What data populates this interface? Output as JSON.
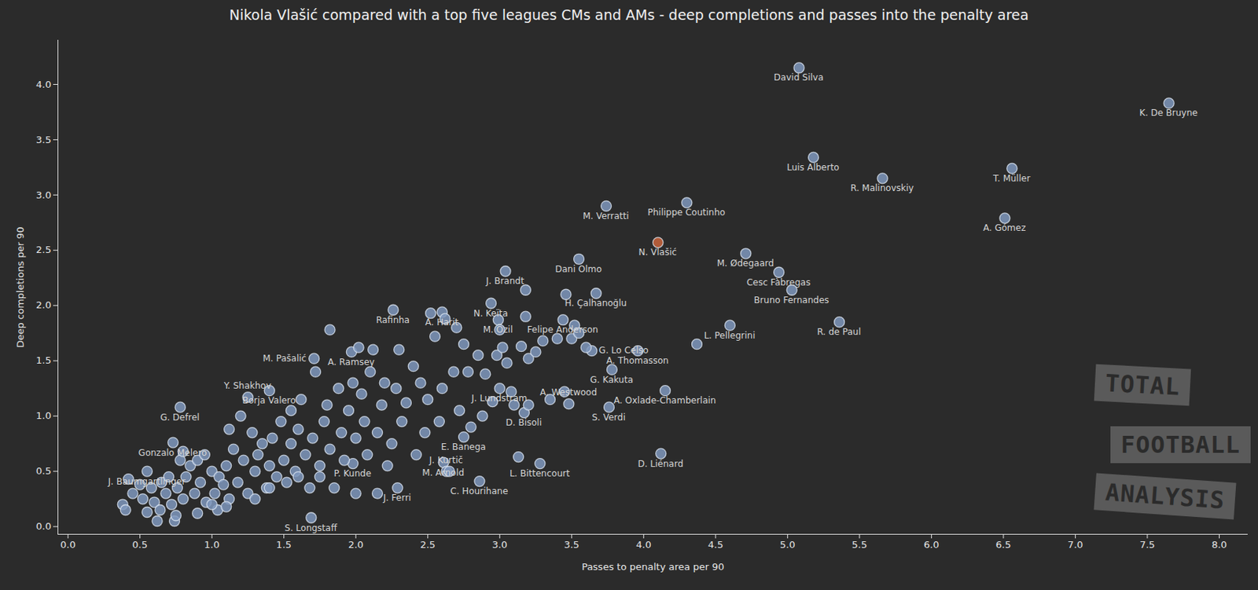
{
  "chart_data": {
    "type": "scatter",
    "title": "Nikola Vlašić compared with a top five leagues CMs and AMs - deep completions and passes into the penalty area",
    "x_label": "Passes to penalty area per 90",
    "y_label": "Deep completions per 90",
    "xlim": [
      -0.07,
      8.2
    ],
    "ylim": [
      -0.07,
      4.4
    ],
    "xticks": [
      {
        "value": 0,
        "label": "0.0"
      },
      0.5,
      {
        "value": 1,
        "label": "1.0"
      },
      1.5,
      {
        "value": 2,
        "label": "2.0"
      },
      2.5,
      {
        "value": 3,
        "label": "3.0"
      },
      3.5,
      {
        "value": 4,
        "label": "4.0"
      },
      4.5,
      {
        "value": 5,
        "label": "5.0"
      },
      5.5,
      {
        "value": 6,
        "label": "6.0"
      },
      6.5,
      {
        "value": 7,
        "label": "7.0"
      },
      7.5,
      {
        "value": 8,
        "label": "8.0"
      }
    ],
    "yticks": [
      {
        "value": 0,
        "label": "0.0"
      },
      0.5,
      {
        "value": 1,
        "label": "1.0"
      },
      1.5,
      {
        "value": 2,
        "label": "2.0"
      },
      2.5,
      {
        "value": 3,
        "label": "3.0"
      },
      3.5,
      {
        "value": 4,
        "label": "4.0"
      }
    ],
    "grid": false,
    "annotations": [
      "TOTAL",
      "FOOTBALL",
      "ANALYSIS"
    ],
    "x": [
      5.08,
      7.65,
      5.18,
      5.66,
      6.56,
      6.51,
      3.74,
      4.3,
      4.1,
      4.71,
      4.94,
      5.03,
      5.36,
      4.6,
      3.96,
      4.15,
      4.12,
      3.76,
      3.04,
      3.55,
      3.67,
      3.44,
      3.64,
      3.78,
      2.6,
      2.94,
      2.26,
      2.99,
      1.97,
      1.71,
      1.4,
      1.25,
      0.78,
      0.73,
      0.55,
      1.98,
      1.69,
      2.29,
      2.86,
      2.61,
      2.63,
      2.75,
      3.28,
      3.0,
      3.17,
      3.48,
      0.38,
      0.4,
      0.42,
      0.45,
      0.5,
      0.52,
      0.55,
      0.58,
      0.6,
      0.62,
      0.64,
      0.65,
      0.68,
      0.7,
      0.72,
      0.74,
      0.75,
      0.76,
      0.78,
      0.8,
      0.8,
      0.82,
      0.85,
      0.88,
      0.9,
      0.92,
      0.95,
      0.96,
      1.0,
      1.02,
      1.04,
      1.05,
      1.08,
      1.1,
      1.12,
      1.12,
      1.15,
      1.18,
      1.2,
      1.22,
      1.25,
      1.28,
      1.3,
      1.32,
      1.35,
      1.38,
      1.4,
      1.42,
      1.45,
      1.48,
      1.5,
      1.52,
      1.55,
      1.55,
      1.58,
      1.6,
      1.62,
      1.65,
      1.68,
      1.7,
      1.72,
      1.75,
      1.78,
      1.8,
      1.82,
      1.82,
      1.85,
      1.88,
      1.9,
      1.92,
      1.95,
      1.98,
      2.0,
      2.02,
      2.04,
      2.06,
      2.08,
      2.1,
      2.12,
      2.15,
      2.18,
      2.2,
      2.22,
      2.25,
      2.28,
      2.3,
      2.32,
      2.35,
      2.4,
      2.42,
      2.45,
      2.48,
      2.5,
      2.52,
      2.55,
      2.58,
      2.6,
      2.62,
      2.65,
      2.68,
      2.7,
      2.72,
      2.75,
      2.78,
      2.8,
      2.85,
      2.88,
      2.9,
      2.95,
      2.98,
      3.0,
      3.02,
      3.05,
      3.08,
      3.1,
      3.15,
      3.18,
      3.18,
      3.2,
      3.25,
      3.3,
      3.35,
      3.4,
      3.45,
      3.5,
      3.52,
      3.55,
      3.6,
      3.2,
      1.3,
      1.0,
      0.9,
      1.1,
      1.4,
      1.6,
      2.0,
      2.15,
      1.75,
      4.37,
      3.46,
      3.13
    ],
    "values": [
      4.15,
      3.83,
      3.34,
      3.15,
      3.24,
      2.79,
      2.9,
      2.93,
      2.57,
      2.47,
      2.3,
      2.14,
      1.85,
      1.82,
      1.59,
      1.23,
      0.66,
      1.08,
      2.31,
      2.42,
      2.11,
      1.87,
      1.59,
      1.42,
      1.94,
      2.02,
      1.96,
      1.87,
      1.58,
      1.52,
      1.23,
      1.17,
      1.08,
      0.76,
      0.5,
      0.57,
      0.08,
      0.35,
      0.41,
      0.58,
      0.5,
      0.81,
      0.57,
      1.25,
      1.03,
      1.11,
      0.2,
      0.15,
      0.43,
      0.3,
      0.38,
      0.25,
      0.13,
      0.35,
      0.22,
      0.05,
      0.15,
      0.4,
      0.3,
      0.45,
      0.2,
      0.05,
      0.1,
      0.35,
      0.6,
      0.68,
      0.25,
      0.45,
      0.55,
      0.3,
      0.6,
      0.4,
      0.65,
      0.22,
      0.5,
      0.3,
      0.15,
      0.45,
      0.38,
      0.55,
      0.25,
      0.88,
      0.7,
      0.4,
      1.0,
      0.6,
      0.3,
      0.85,
      0.5,
      0.65,
      0.75,
      0.35,
      0.55,
      0.8,
      0.45,
      0.95,
      0.6,
      0.4,
      0.75,
      1.05,
      0.5,
      0.88,
      1.15,
      0.65,
      0.35,
      0.8,
      1.4,
      0.55,
      0.95,
      1.1,
      1.78,
      0.7,
      0.35,
      1.25,
      0.85,
      0.6,
      1.05,
      1.3,
      0.8,
      1.62,
      1.2,
      0.95,
      0.65,
      1.4,
      1.6,
      0.85,
      1.1,
      1.3,
      0.55,
      0.75,
      1.25,
      1.6,
      0.95,
      1.12,
      1.45,
      0.65,
      1.3,
      0.85,
      1.15,
      1.93,
      1.72,
      0.95,
      1.25,
      1.88,
      0.5,
      1.4,
      1.8,
      1.05,
      1.65,
      1.4,
      0.9,
      1.55,
      1.0,
      1.38,
      1.13,
      1.55,
      1.78,
      1.62,
      1.48,
      1.22,
      1.1,
      1.63,
      1.9,
      2.14,
      1.52,
      1.58,
      1.68,
      1.15,
      1.7,
      1.22,
      1.7,
      1.82,
      1.75,
      1.62,
      1.1,
      0.25,
      0.2,
      0.12,
      0.18,
      0.35,
      0.45,
      0.3,
      0.3,
      0.45,
      1.65,
      2.1,
      0.63
    ],
    "labels": [
      "David Silva",
      "K. De Bruyne",
      "Luis Alberto",
      "R. Malinovskiy",
      "T. Müller",
      "A. Gómez",
      "M. Verratti",
      "Philippe Coutinho",
      "N. Vlašić",
      "M. Ødegaard",
      "Cesc Fàbregas",
      "Bruno Fernandes",
      "R. de Paul",
      "L. Pellegrini",
      "A. Thomasson",
      "A. Oxlade-Chamberlain",
      "D. Liénard",
      "S. Verdi",
      "J. Brandt",
      "Dani Olmo",
      "H. Çalhanoğlu",
      "Felipe Anderson",
      "G. Lo Celso",
      "G. Kakuta",
      "A. Harit",
      "N. Keïta",
      "Rafinha",
      "M. Özil",
      "A. Ramsey",
      "M. Pašalić",
      "Borja Valero",
      "Y. Shakhov",
      "G. Defrel",
      "Gonzalo Melero",
      "J. Baumgartlinger",
      "P. Kunde",
      "S. Longstaff",
      "J. Ferri",
      "C. Hourihane",
      "M. Arnold",
      "J. Kurtič",
      "E. Banega",
      "L. Bittencourt",
      "J. Lundstram",
      "D. Bisoli",
      "A. Westwood",
      null,
      null,
      null,
      null,
      null,
      null,
      null,
      null,
      null,
      null,
      null,
      null,
      null,
      null,
      null,
      null,
      null,
      null,
      null,
      null,
      null,
      null,
      null,
      null,
      null,
      null,
      null,
      null,
      null,
      null,
      null,
      null,
      null,
      null,
      null,
      null,
      null,
      null,
      null,
      null,
      null,
      null,
      null,
      null,
      null,
      null,
      null,
      null,
      null,
      null,
      null,
      null,
      null,
      null,
      null,
      null,
      null,
      null,
      null,
      null,
      null,
      null,
      null,
      null,
      null,
      null,
      null,
      null,
      null,
      null,
      null,
      null,
      null,
      null,
      null,
      null,
      null,
      null,
      null,
      null,
      null,
      null,
      null,
      null,
      null,
      null,
      null,
      null,
      null,
      null,
      null,
      null,
      null,
      null,
      null,
      null,
      null,
      null,
      null,
      null,
      null,
      null,
      null,
      null,
      null,
      null,
      null,
      null,
      null,
      null,
      null,
      null,
      null,
      null,
      null,
      null,
      null,
      null,
      null,
      null,
      null,
      null,
      null,
      null,
      null,
      null,
      null,
      null,
      null,
      null,
      null,
      null,
      null,
      null,
      null,
      null,
      null,
      null,
      null,
      null,
      null
    ],
    "colors": [
      "#7f98bd",
      "#7f98bd",
      "#7f98bd",
      "#7f98bd",
      "#7f98bd",
      "#7f98bd",
      "#7f98bd",
      "#7f98bd",
      "#c8643c",
      "#7f98bd",
      "#7f98bd",
      "#7f98bd",
      "#7f98bd",
      "#7f98bd",
      "#7f98bd",
      "#7f98bd",
      "#7f98bd",
      "#7f98bd",
      "#7f98bd",
      "#7f98bd",
      "#7f98bd",
      "#7f98bd",
      "#7f98bd",
      "#7f98bd",
      "#7f98bd",
      "#7f98bd",
      "#7f98bd",
      "#7f98bd",
      "#7f98bd",
      "#7f98bd",
      "#7f98bd",
      "#7f98bd",
      "#7f98bd",
      "#7f98bd",
      "#7f98bd",
      "#7f98bd",
      "#7f98bd",
      "#7f98bd",
      "#7f98bd",
      "#7f98bd",
      "#7f98bd",
      "#7f98bd",
      "#7f98bd",
      "#7f98bd",
      "#7f98bd",
      "#7f98bd",
      "#7f98bd",
      "#7f98bd",
      "#7f98bd",
      "#7f98bd",
      "#7f98bd",
      "#7f98bd",
      "#7f98bd",
      "#7f98bd",
      "#7f98bd",
      "#7f98bd",
      "#7f98bd",
      "#7f98bd",
      "#7f98bd",
      "#7f98bd",
      "#7f98bd",
      "#7f98bd",
      "#7f98bd",
      "#7f98bd",
      "#7f98bd",
      "#7f98bd",
      "#7f98bd",
      "#7f98bd",
      "#7f98bd",
      "#7f98bd",
      "#7f98bd",
      "#7f98bd",
      "#7f98bd",
      "#7f98bd",
      "#7f98bd",
      "#7f98bd",
      "#7f98bd",
      "#7f98bd",
      "#7f98bd",
      "#7f98bd",
      "#7f98bd",
      "#7f98bd",
      "#7f98bd",
      "#7f98bd",
      "#7f98bd",
      "#7f98bd",
      "#7f98bd",
      "#7f98bd",
      "#7f98bd",
      "#7f98bd",
      "#7f98bd",
      "#7f98bd",
      "#7f98bd",
      "#7f98bd",
      "#7f98bd",
      "#7f98bd",
      "#7f98bd",
      "#7f98bd",
      "#7f98bd",
      "#7f98bd",
      "#7f98bd",
      "#7f98bd",
      "#7f98bd",
      "#7f98bd",
      "#7f98bd",
      "#7f98bd",
      "#7f98bd",
      "#7f98bd",
      "#7f98bd",
      "#7f98bd",
      "#7f98bd",
      "#7f98bd",
      "#7f98bd",
      "#7f98bd",
      "#7f98bd",
      "#7f98bd",
      "#7f98bd",
      "#7f98bd",
      "#7f98bd",
      "#7f98bd",
      "#7f98bd",
      "#7f98bd",
      "#7f98bd",
      "#7f98bd",
      "#7f98bd",
      "#7f98bd",
      "#7f98bd",
      "#7f98bd",
      "#7f98bd",
      "#7f98bd",
      "#7f98bd",
      "#7f98bd",
      "#7f98bd",
      "#7f98bd",
      "#7f98bd",
      "#7f98bd",
      "#7f98bd",
      "#7f98bd",
      "#7f98bd",
      "#7f98bd",
      "#7f98bd",
      "#7f98bd",
      "#7f98bd",
      "#7f98bd",
      "#7f98bd",
      "#7f98bd",
      "#7f98bd",
      "#7f98bd",
      "#7f98bd",
      "#7f98bd",
      "#7f98bd",
      "#7f98bd",
      "#7f98bd",
      "#7f98bd",
      "#7f98bd",
      "#7f98bd",
      "#7f98bd",
      "#7f98bd",
      "#7f98bd",
      "#7f98bd",
      "#7f98bd",
      "#7f98bd",
      "#7f98bd",
      "#7f98bd",
      "#7f98bd",
      "#7f98bd",
      "#7f98bd",
      "#7f98bd",
      "#7f98bd",
      "#7f98bd",
      "#7f98bd",
      "#7f98bd",
      "#7f98bd",
      "#7f98bd",
      "#7f98bd",
      "#7f98bd",
      "#7f98bd",
      "#7f98bd",
      "#7f98bd",
      "#7f98bd",
      "#7f98bd",
      "#7f98bd",
      "#7f98bd",
      "#7f98bd",
      "#7f98bd",
      "#7f98bd",
      "#7f98bd"
    ]
  }
}
